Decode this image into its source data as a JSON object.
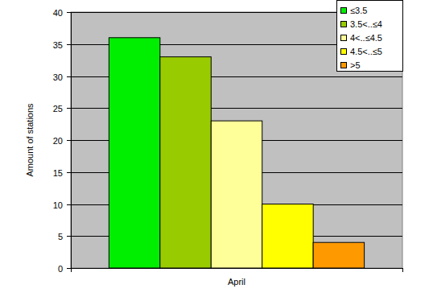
{
  "chart_data": {
    "type": "bar",
    "categories": [
      "April"
    ],
    "ylabel": "Amount of stations",
    "series": [
      {
        "name": "≤3.5",
        "color": "#00ee00",
        "values": [
          36
        ]
      },
      {
        "name": "3.5<..≤4",
        "color": "#99cc00",
        "values": [
          33
        ]
      },
      {
        "name": "4<..≤4.5",
        "color": "#ffff99",
        "values": [
          23
        ]
      },
      {
        "name": "4.5<..≤5",
        "color": "#ffff00",
        "values": [
          10
        ]
      },
      {
        "name": ">5",
        "color": "#ff9900",
        "values": [
          4
        ]
      }
    ],
    "ylim": [
      0,
      40
    ],
    "yticks": [
      0,
      5,
      10,
      15,
      20,
      25,
      30,
      35,
      40
    ],
    "grid": true,
    "legend": "upper right"
  }
}
